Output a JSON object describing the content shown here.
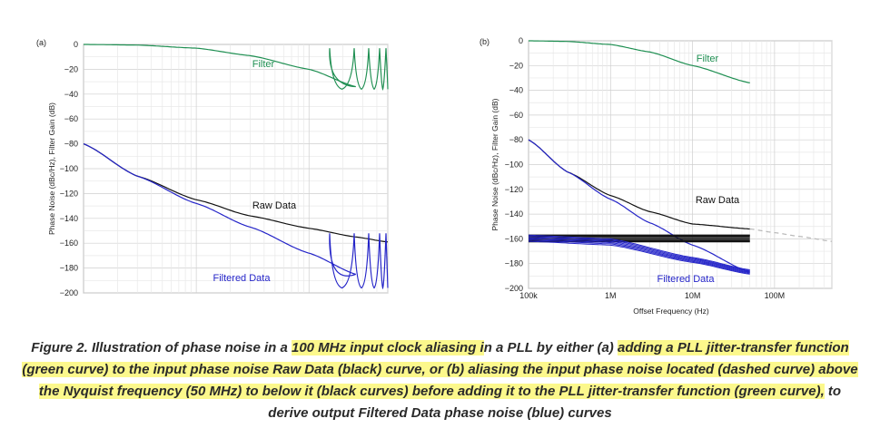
{
  "chart_data": [
    {
      "type": "line",
      "panel_label": "(a)",
      "ylabel": "Phase Noise (dBc/Hz), Filter Gain (dB)",
      "xlabel": "",
      "y_ticks": [
        "0",
        "−20",
        "−40",
        "−60",
        "−80",
        "−100",
        "−120",
        "−140",
        "−160",
        "−180",
        "−200"
      ],
      "ylim": [
        -200,
        0
      ],
      "x_scale": "log",
      "xlim": [
        100000,
        50000000
      ],
      "grid": true,
      "series": [
        {
          "name": "Filter",
          "color": "#1f8f52",
          "x": [
            100000,
            300000,
            1000000,
            3000000,
            10000000,
            26000000
          ],
          "y": [
            0,
            -0.5,
            -3,
            -9,
            -20,
            -34
          ]
        },
        {
          "name": "Raw Data",
          "color": "#111111",
          "x": [
            100000,
            300000,
            1000000,
            3000000,
            10000000,
            26000000,
            50000000
          ],
          "y": [
            -80,
            -106,
            -125,
            -138,
            -148,
            -155,
            -159
          ]
        },
        {
          "name": "Filtered Data",
          "color": "#2424c8",
          "x": [
            100000,
            300000,
            1000000,
            3000000,
            10000000,
            26000000
          ],
          "y": [
            -80,
            -106,
            -128,
            -147,
            -168,
            -185
          ]
        }
      ],
      "annotations": [
        "Filter",
        "Raw Data",
        "Filtered Data"
      ]
    },
    {
      "type": "line",
      "panel_label": "(b)",
      "ylabel": "Phase Noise (dBc/Hz), Filter Gain (dB)",
      "xlabel": "Offset Frequency (Hz)",
      "y_ticks": [
        "0",
        "−20",
        "−40",
        "−60",
        "−80",
        "−100",
        "−120",
        "−140",
        "−160",
        "−180",
        "−200"
      ],
      "x_ticks": [
        "100k",
        "1M",
        "10M",
        "100M"
      ],
      "ylim": [
        -200,
        0
      ],
      "x_scale": "log",
      "xlim": [
        100000,
        500000000
      ],
      "grid": true,
      "series": [
        {
          "name": "Filter",
          "color": "#1f8f52",
          "x": [
            100000,
            300000,
            1000000,
            3000000,
            10000000,
            50000000
          ],
          "y": [
            0,
            -0.5,
            -3,
            -9,
            -20,
            -34
          ]
        },
        {
          "name": "Raw Data",
          "color": "#111111",
          "x": [
            100000,
            300000,
            1000000,
            3000000,
            10000000,
            50000000
          ],
          "y": [
            -80,
            -106,
            -125,
            -138,
            -148,
            -152
          ]
        },
        {
          "name": "",
          "color": "#b8b8b8",
          "x": [
            50000000,
            100000000,
            200000000,
            500000000
          ],
          "y": [
            -152,
            -155,
            -158,
            -162
          ]
        },
        {
          "name": "",
          "color": "#111111",
          "x": [
            100000,
            50000000
          ],
          "y": [
            -157,
            -157
          ]
        },
        {
          "name": "",
          "color": "#111111",
          "x": [
            100000,
            50000000
          ],
          "y": [
            -162,
            -162
          ]
        },
        {
          "name": "Filtered Data",
          "color": "#2424c8",
          "x": [
            100000,
            300000,
            1000000,
            3000000,
            10000000,
            50000000
          ],
          "y": [
            -80,
            -106,
            -128,
            -147,
            -165,
            -187
          ]
        }
      ],
      "annotations": [
        "Filter",
        "Raw Data",
        "Filtered Data"
      ]
    }
  ],
  "caption": {
    "parts": [
      {
        "text": "Figure 2. Illustration of phase noise in a ",
        "hl": false
      },
      {
        "text": "100 MHz input clock aliasing i",
        "hl": true
      },
      {
        "text": "n a PLL by either (a) ",
        "hl": false
      },
      {
        "text": "adding a PLL jitter-transfer function (green curve) to the input phase noise Raw Data (black) curve, or (b) ",
        "hl": true
      },
      {
        "text": "aliasing the input phase noise located (dashed curve) above the Nyquist frequency (50 MHz) to below it (black curves) before adding it to the PLL jitter-transfer function (green curve),",
        "hl": true
      },
      {
        "text": " to derive output Filtered Data phase noise (blue) curves",
        "hl": false
      }
    ]
  }
}
